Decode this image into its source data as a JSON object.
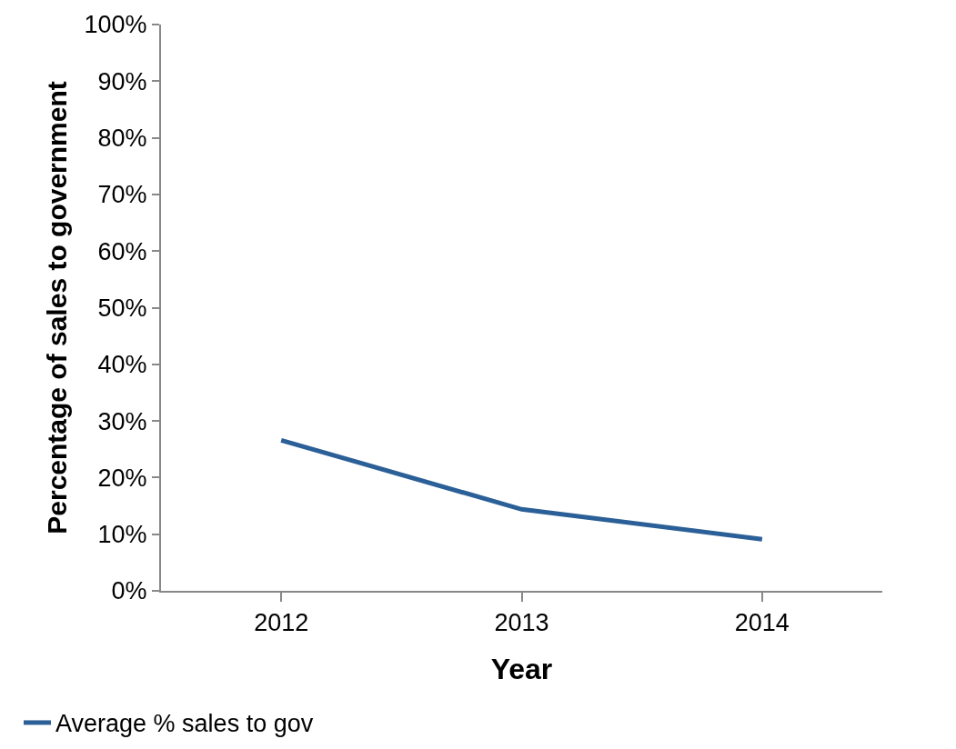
{
  "chart_data": {
    "type": "line",
    "xlabel": "Year",
    "ylabel": "Percentage of sales to government",
    "categories": [
      "2012",
      "2013",
      "2014"
    ],
    "series": [
      {
        "name": "Average % sales to gov",
        "color": "#2b5f97",
        "values": [
          26.6,
          14.4,
          9.1
        ]
      }
    ],
    "ylim": [
      0,
      100
    ],
    "yticks": [
      {
        "value": 0,
        "label": "0%"
      },
      {
        "value": 10,
        "label": "10%"
      },
      {
        "value": 20,
        "label": "20%"
      },
      {
        "value": 30,
        "label": "30%"
      },
      {
        "value": 40,
        "label": "40%"
      },
      {
        "value": 50,
        "label": "50%"
      },
      {
        "value": 60,
        "label": "60%"
      },
      {
        "value": 70,
        "label": "70%"
      },
      {
        "value": 80,
        "label": "80%"
      },
      {
        "value": 90,
        "label": "90%"
      },
      {
        "value": 100,
        "label": "100%"
      }
    ],
    "legend": "bottom left",
    "marker": "none",
    "line_style": "solid"
  }
}
